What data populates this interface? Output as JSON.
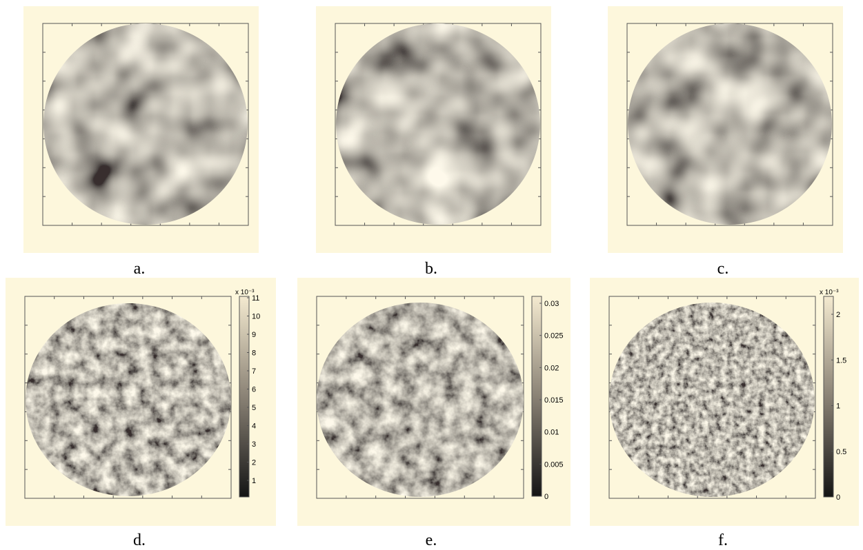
{
  "panels": [
    {
      "label": "a.",
      "colorbar": null
    },
    {
      "label": "b.",
      "colorbar": null
    },
    {
      "label": "c.",
      "colorbar": null
    },
    {
      "label": "d.",
      "colorbar": {
        "exponent": "x 10⁻³",
        "ticks": [
          "11",
          "10",
          "9",
          "8",
          "7",
          "6",
          "5",
          "4",
          "3",
          "2",
          "1"
        ]
      }
    },
    {
      "label": "e.",
      "colorbar": {
        "exponent": "",
        "ticks": [
          "0.03",
          "0.025",
          "0.02",
          "0.015",
          "0.01",
          "0.005",
          "0"
        ]
      }
    },
    {
      "label": "f.",
      "colorbar": {
        "exponent": "x 10⁻³",
        "ticks": [
          "2",
          "1.5",
          "1",
          "0.5",
          "0"
        ]
      }
    }
  ],
  "colors": {
    "panel_background": "#fdf7dc",
    "texture_light": "#f4ead0",
    "texture_dark": "#141414"
  }
}
